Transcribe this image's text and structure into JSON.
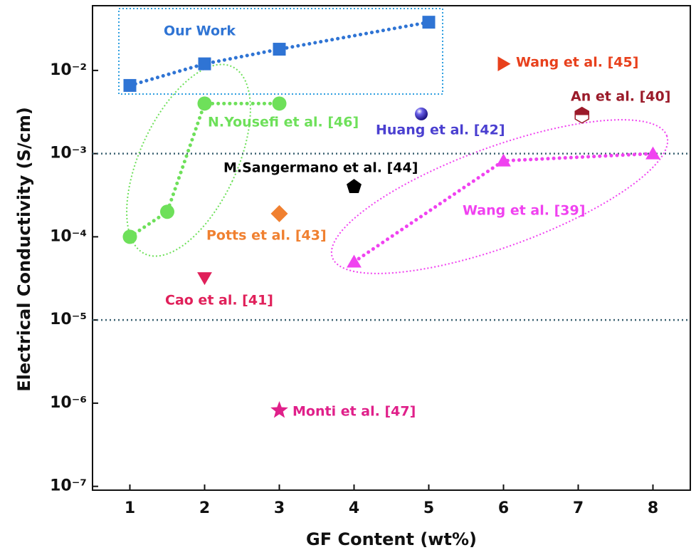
{
  "chart_data": {
    "type": "scatter",
    "x_label": "GF Content (wt%)",
    "y_label": "Electrical Conductivity (S/cm)",
    "xlim": [
      0.5,
      8.5
    ],
    "xticks": [
      1,
      2,
      3,
      4,
      5,
      6,
      7,
      8
    ],
    "ylim": [
      9e-08,
      0.06
    ],
    "y_scale": "log",
    "yticks": [
      {
        "value": 1e-07,
        "label": "10⁻⁷"
      },
      {
        "value": 1e-06,
        "label": "10⁻⁶"
      },
      {
        "value": 1e-05,
        "label": "10⁻⁵"
      },
      {
        "value": 0.0001,
        "label": "10⁻⁴"
      },
      {
        "value": 0.001,
        "label": "10⁻³"
      },
      {
        "value": 0.01,
        "label": "10⁻²"
      }
    ],
    "hlines": [
      0.001,
      1e-05
    ],
    "series": [
      {
        "name": "Our Work",
        "color": "#2f74d4",
        "marker": "square",
        "line": true,
        "x": [
          1,
          2,
          3,
          5
        ],
        "values": [
          0.0066,
          0.012,
          0.018,
          0.038
        ]
      },
      {
        "name": "N.Yousefi et al. [46]",
        "color": "#6ee05a",
        "marker": "circle",
        "line": true,
        "x": [
          1,
          1.5,
          2,
          3
        ],
        "values": [
          0.0001,
          0.0002,
          0.004,
          0.004
        ]
      },
      {
        "name": "Wang et al. [39]",
        "color": "#f042f0",
        "marker": "triangle-up",
        "line": true,
        "x": [
          4,
          6,
          8
        ],
        "values": [
          5e-05,
          0.00082,
          0.001
        ]
      },
      {
        "name": "Wang et al. [45]",
        "color": "#e8401c",
        "marker": "triangle-right",
        "x": [
          6
        ],
        "values": [
          0.012
        ]
      },
      {
        "name": "An et al. [40]",
        "color": "#9b1b2a",
        "marker": "hexagon",
        "x": [
          7.05
        ],
        "values": [
          0.0029
        ]
      },
      {
        "name": "Huang et al. [42]",
        "color": "#4a3fd0",
        "marker": "sphere",
        "x": [
          4.9
        ],
        "values": [
          0.003
        ]
      },
      {
        "name": "M.Sangermano et al. [44]",
        "color": "#000000",
        "marker": "pentagon",
        "x": [
          4
        ],
        "values": [
          0.0004
        ]
      },
      {
        "name": "Potts et al. [43]",
        "color": "#f08030",
        "marker": "diamond",
        "x": [
          3
        ],
        "values": [
          0.00019
        ]
      },
      {
        "name": "Cao et al. [41]",
        "color": "#e0205a",
        "marker": "triangle-down",
        "x": [
          2
        ],
        "values": [
          3.2e-05
        ]
      },
      {
        "name": "Monti et al. [47]",
        "color": "#e0208a",
        "marker": "star",
        "x": [
          3
        ],
        "values": [
          8.2e-07
        ]
      }
    ]
  }
}
